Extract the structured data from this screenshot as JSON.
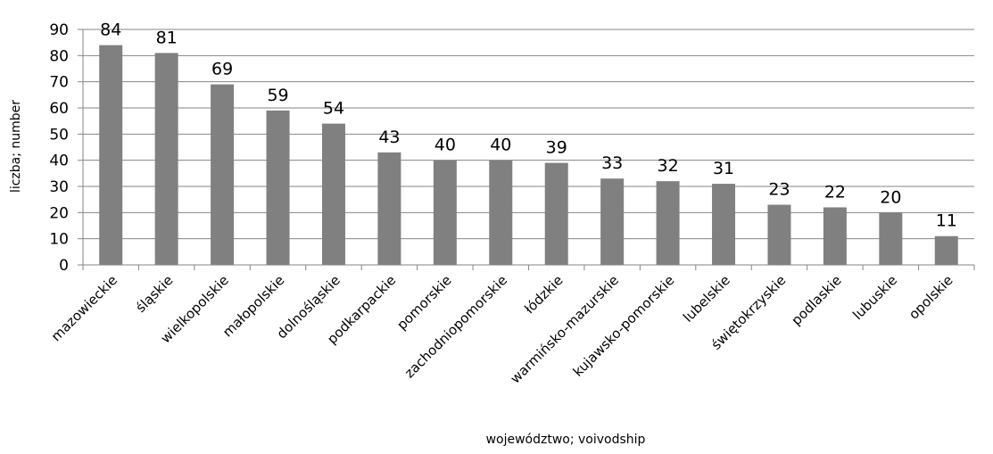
{
  "chart_data": {
    "type": "bar",
    "title": "",
    "xlabel": "województwo; voivodship",
    "ylabel": "liczba; number",
    "ylim": [
      0,
      90
    ],
    "yticks": [
      0,
      10,
      20,
      30,
      40,
      50,
      60,
      70,
      80,
      90
    ],
    "grid": true,
    "legend": "none",
    "categories": [
      "mazowieckie",
      "śląskie",
      "wielkopolskie",
      "małopolskie",
      "dolnośląskie",
      "podkarpackie",
      "pomorskie",
      "zachodniopomorskie",
      "łódzkie",
      "warmińsko-mazurskie",
      "kujawsko-pomorskie",
      "lubelskie",
      "świętokrzyskie",
      "podlaskie",
      "lubuskie",
      "opolskie"
    ],
    "values": [
      84,
      81,
      69,
      59,
      54,
      43,
      40,
      40,
      39,
      33,
      32,
      31,
      23,
      22,
      20,
      11
    ],
    "data_labels": true,
    "bar_color": "#808080"
  }
}
